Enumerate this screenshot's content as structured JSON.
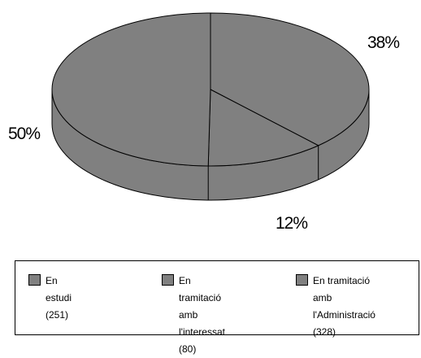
{
  "chart_data": {
    "type": "pie",
    "title": "",
    "slices": [
      {
        "label": "En estudi (251)",
        "value": 251,
        "percent_label": "38%"
      },
      {
        "label": "En tramitació amb l'interessat (80)",
        "value": 80,
        "percent_label": "12%"
      },
      {
        "label": "En tramitació amb l'Administració (328)",
        "value": 328,
        "percent_label": "50%"
      }
    ],
    "colors": {
      "fill": "#808080",
      "outline": "#000000"
    },
    "style": "3d",
    "legend_placement": "bottom"
  },
  "legend": {
    "items": [
      {
        "line1": "En estudi (251)",
        "line2": ""
      },
      {
        "line1": "En tramitació amb",
        "line2": "l'interessat (80)"
      },
      {
        "line1": "En tramitació amb",
        "line2": "l'Administració (328)"
      }
    ]
  }
}
